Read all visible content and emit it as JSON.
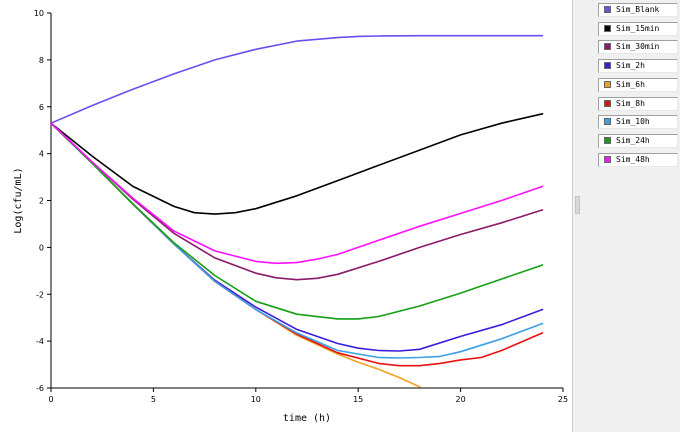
{
  "chart_data": {
    "type": "line",
    "title": "",
    "xlabel": "time (h)",
    "ylabel": "Log(cfu/mL)",
    "xlim": [
      0,
      25
    ],
    "ylim": [
      -6,
      10
    ],
    "x_ticks": [
      0,
      5,
      10,
      15,
      20,
      25
    ],
    "y_ticks": [
      -6,
      -4,
      -2,
      0,
      2,
      4,
      6,
      8,
      10
    ],
    "grid": false,
    "legend_position": "right",
    "series": [
      {
        "name": "Sim_Blank",
        "color": "#6a4ef0",
        "x": [
          0,
          2,
          4,
          6,
          8,
          10,
          12,
          14,
          15,
          16,
          18,
          20,
          22,
          24
        ],
        "y": [
          5.3,
          6.05,
          6.75,
          7.4,
          8.0,
          8.45,
          8.8,
          8.95,
          9.0,
          9.02,
          9.03,
          9.03,
          9.03,
          9.03
        ]
      },
      {
        "name": "Sim_15min",
        "color": "#000000",
        "x": [
          0,
          2,
          4,
          6,
          7,
          8,
          9,
          10,
          12,
          14,
          16,
          18,
          20,
          22,
          24
        ],
        "y": [
          5.3,
          3.9,
          2.6,
          1.75,
          1.48,
          1.42,
          1.48,
          1.65,
          2.2,
          2.85,
          3.5,
          4.15,
          4.8,
          5.3,
          5.7
        ]
      },
      {
        "name": "Sim_30min",
        "color": "#8b1a6a",
        "x": [
          0,
          2,
          4,
          6,
          8,
          10,
          11,
          12,
          13,
          14,
          16,
          18,
          20,
          22,
          24
        ],
        "y": [
          5.3,
          3.65,
          2.05,
          0.6,
          -0.45,
          -1.1,
          -1.3,
          -1.38,
          -1.32,
          -1.15,
          -0.6,
          0.0,
          0.55,
          1.05,
          1.6
        ]
      },
      {
        "name": "Sim_2h",
        "color": "#3a1ee0",
        "x": [
          0,
          2,
          4,
          6,
          8,
          10,
          12,
          14,
          15,
          16,
          17,
          18,
          20,
          22,
          24
        ],
        "y": [
          5.3,
          3.6,
          1.85,
          0.15,
          -1.4,
          -2.55,
          -3.5,
          -4.1,
          -4.3,
          -4.4,
          -4.42,
          -4.35,
          -3.8,
          -3.3,
          -2.65
        ]
      },
      {
        "name": "Sim_6h",
        "color": "#f5a020",
        "x": [
          0,
          2,
          4,
          6,
          8,
          10,
          12,
          14,
          15,
          16,
          17,
          18
        ],
        "y": [
          5.3,
          3.6,
          1.85,
          0.15,
          -1.45,
          -2.65,
          -3.75,
          -4.55,
          -4.9,
          -5.2,
          -5.55,
          -5.95
        ]
      },
      {
        "name": "Sim_8h",
        "color": "#e81010",
        "x": [
          0,
          2,
          4,
          6,
          8,
          10,
          12,
          14,
          16,
          17,
          18,
          19,
          20,
          21,
          22,
          24
        ],
        "y": [
          5.3,
          3.6,
          1.85,
          0.15,
          -1.45,
          -2.65,
          -3.7,
          -4.5,
          -4.95,
          -5.05,
          -5.05,
          -4.95,
          -4.8,
          -4.7,
          -4.4,
          -3.65
        ]
      },
      {
        "name": "Sim_10h",
        "color": "#3aa0e8",
        "x": [
          0,
          2,
          4,
          6,
          8,
          10,
          12,
          14,
          16,
          17,
          18,
          19,
          20,
          22,
          24
        ],
        "y": [
          5.3,
          3.6,
          1.85,
          0.15,
          -1.45,
          -2.65,
          -3.65,
          -4.4,
          -4.7,
          -4.72,
          -4.7,
          -4.65,
          -4.45,
          -3.9,
          -3.25
        ]
      },
      {
        "name": "Sim_24h",
        "color": "#14a014",
        "x": [
          0,
          2,
          4,
          6,
          8,
          10,
          12,
          14,
          15,
          16,
          18,
          20,
          22,
          24
        ],
        "y": [
          5.3,
          3.6,
          1.85,
          0.2,
          -1.2,
          -2.3,
          -2.85,
          -3.05,
          -3.05,
          -2.95,
          -2.5,
          -1.95,
          -1.35,
          -0.75
        ]
      },
      {
        "name": "Sim_48h",
        "color": "#ff10ff",
        "x": [
          0,
          2,
          4,
          6,
          8,
          10,
          11,
          12,
          13,
          14,
          16,
          18,
          20,
          22,
          24
        ],
        "y": [
          5.3,
          3.65,
          2.1,
          0.7,
          -0.15,
          -0.6,
          -0.68,
          -0.65,
          -0.5,
          -0.3,
          0.3,
          0.9,
          1.45,
          2.0,
          2.6
        ]
      }
    ]
  }
}
